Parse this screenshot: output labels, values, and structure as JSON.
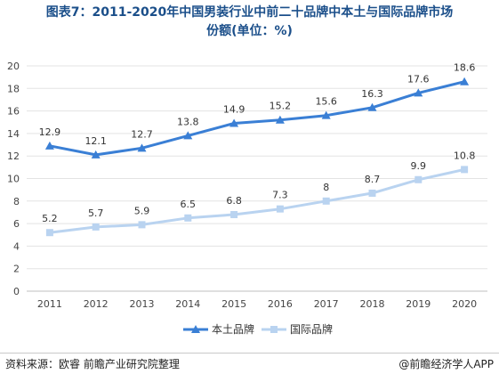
{
  "title": {
    "line1": "图表7：2011-2020年中国男装行业中前二十品牌中本土与国际品牌市场",
    "line2": "份额(单位：%)"
  },
  "source": "资料来源：欧睿 前瞻产业研究院整理",
  "credit": "@前瞻经济学人APP",
  "chart_data": {
    "type": "line",
    "x": [
      "2011",
      "2012",
      "2013",
      "2014",
      "2015",
      "2016",
      "2017",
      "2018",
      "2019",
      "2020"
    ],
    "ylim": [
      0,
      20
    ],
    "yticks": [
      0,
      2,
      4,
      6,
      8,
      10,
      12,
      14,
      16,
      18,
      20
    ],
    "grid": "horizontal",
    "legend": "bottom-center",
    "series": [
      {
        "name": "本土品牌",
        "values": [
          12.9,
          12.1,
          12.7,
          13.8,
          14.9,
          15.2,
          15.6,
          16.3,
          17.6,
          18.6
        ],
        "color": "#3a7fd5",
        "marker": "triangle"
      },
      {
        "name": "国际品牌",
        "values": [
          5.2,
          5.7,
          5.9,
          6.5,
          6.8,
          7.3,
          8,
          8.7,
          9.9,
          10.8
        ],
        "color": "#b9d3f0",
        "marker": "square"
      }
    ]
  }
}
